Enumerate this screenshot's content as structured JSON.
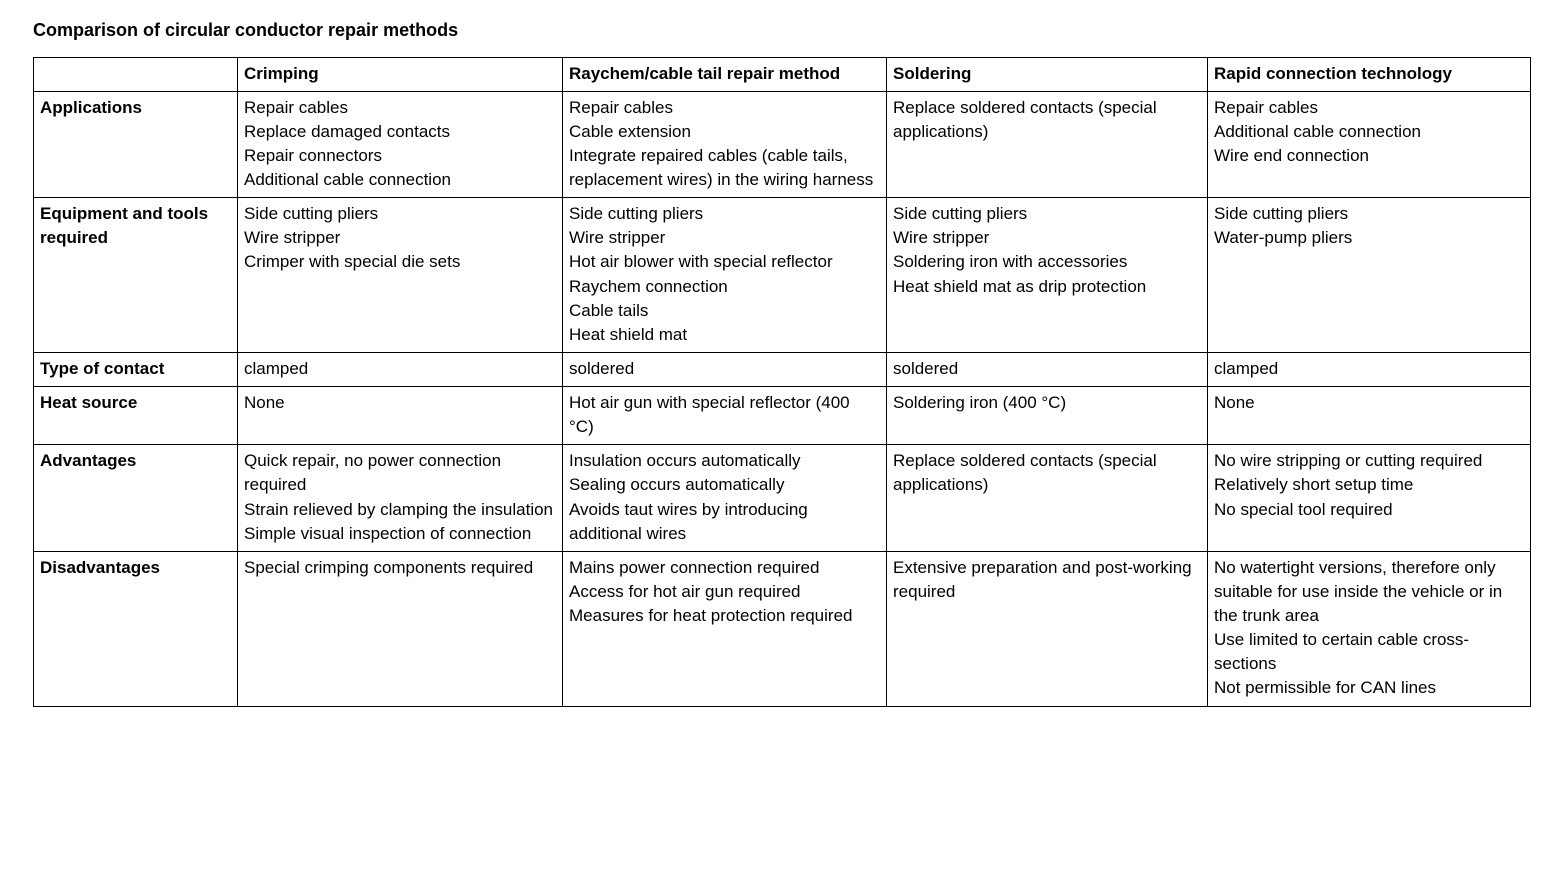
{
  "page": {
    "title": "Comparison of circular conductor repair methods"
  },
  "table": {
    "columns": [
      "",
      "Crimping",
      "Raychem/cable tail repair method",
      "Soldering",
      "Rapid connection technology"
    ],
    "rows": [
      {
        "label": "Applications",
        "cells": [
          [
            "Repair cables",
            "Replace damaged contacts",
            "Repair connectors",
            "Additional cable connection"
          ],
          [
            "Repair cables",
            "Cable extension",
            "Integrate repaired cables (cable tails, replacement wires) in the wiring harness"
          ],
          [
            "Replace soldered contacts (special applications)"
          ],
          [
            "Repair cables",
            "Additional cable connection",
            "Wire end connection"
          ]
        ]
      },
      {
        "label": "Equipment and tools required",
        "cells": [
          [
            "Side cutting pliers",
            "Wire stripper",
            "Crimper with special die sets"
          ],
          [
            "Side cutting pliers",
            "Wire stripper",
            "Hot air blower with special reflector",
            "Raychem connection",
            "Cable tails",
            "Heat shield mat"
          ],
          [
            "Side cutting pliers",
            "Wire stripper",
            "Soldering iron with accessories",
            "Heat shield mat as drip protection"
          ],
          [
            "Side cutting pliers",
            "Water-pump pliers"
          ]
        ]
      },
      {
        "label": "Type of contact",
        "cells": [
          [
            "clamped"
          ],
          [
            "soldered"
          ],
          [
            "soldered"
          ],
          [
            "clamped"
          ]
        ]
      },
      {
        "label": "Heat source",
        "cells": [
          [
            "None"
          ],
          [
            "Hot air gun with special reflector (400 °C)"
          ],
          [
            "Soldering iron (400 °C)"
          ],
          [
            "None"
          ]
        ]
      },
      {
        "label": "Advantages",
        "cells": [
          [
            "Quick repair, no power connection required",
            "Strain relieved by clamping the insulation",
            "Simple visual inspection of connection"
          ],
          [
            "Insulation occurs automatically",
            "Sealing occurs automatically",
            "Avoids taut wires by introducing additional wires"
          ],
          [
            "Replace soldered contacts (special applications)"
          ],
          [
            "No wire stripping or cutting required",
            "Relatively short setup time",
            "No special tool required"
          ]
        ]
      },
      {
        "label": "Disadvantages",
        "cells": [
          [
            "Special crimping components required"
          ],
          [
            "Mains power connection required",
            "Access for hot air gun required",
            "Measures for heat protection required"
          ],
          [
            "Extensive preparation and post-working required"
          ],
          [
            "No watertight versions, therefore only suitable for use inside the vehicle or in the trunk area",
            "Use limited to certain cable cross-sections",
            "Not permissible for CAN lines"
          ]
        ]
      }
    ]
  }
}
